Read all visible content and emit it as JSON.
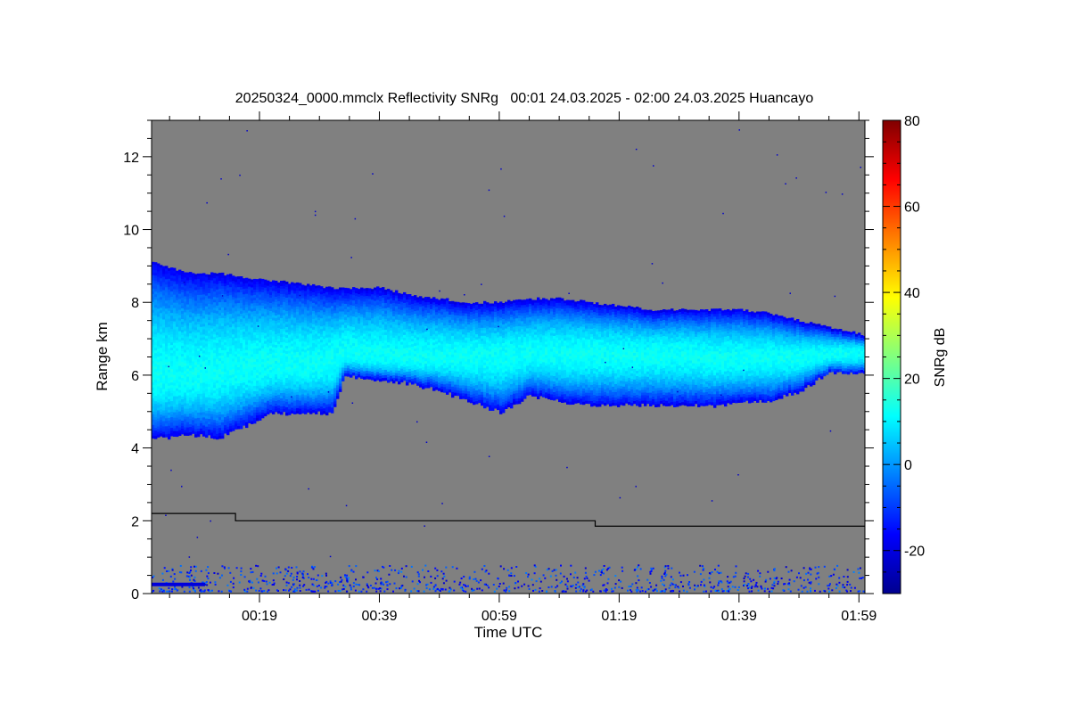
{
  "chart_data": {
    "type": "heatmap",
    "title": "20250324_0000.mmclx Reflectivity SNRg   00:01 24.03.2025 - 02:00 24.03.2025 Huancayo",
    "xlabel": "Time UTC",
    "ylabel": "Range km",
    "colorbar_label": "SNRg dB",
    "xlim_minutes": [
      1,
      120
    ],
    "ylim": [
      0,
      13
    ],
    "x_ticks": [
      {
        "minute": 19,
        "label": "00:19"
      },
      {
        "minute": 39,
        "label": "00:39"
      },
      {
        "minute": 59,
        "label": "00:59"
      },
      {
        "minute": 79,
        "label": "01:19"
      },
      {
        "minute": 99,
        "label": "01:39"
      },
      {
        "minute": 119,
        "label": "01:59"
      }
    ],
    "y_ticks": [
      0,
      2,
      4,
      6,
      8,
      10,
      12
    ],
    "colorbar_range": [
      -30,
      80
    ],
    "colorbar_ticks": [
      -20,
      0,
      20,
      40,
      60,
      80
    ],
    "colormap": "jet",
    "background_color": "#808080",
    "cloud_layer": [
      {
        "minute": 1,
        "top": 9.1,
        "base": 4.3,
        "core": 6.0
      },
      {
        "minute": 7,
        "top": 8.8,
        "base": 4.4,
        "core": 6.0
      },
      {
        "minute": 12,
        "top": 8.8,
        "base": 4.3,
        "core": 6.1
      },
      {
        "minute": 16,
        "top": 8.7,
        "base": 4.6,
        "core": 6.2
      },
      {
        "minute": 21,
        "top": 8.6,
        "base": 5.0,
        "core": 6.3
      },
      {
        "minute": 26,
        "top": 8.5,
        "base": 5.0,
        "core": 6.3
      },
      {
        "minute": 31,
        "top": 8.4,
        "base": 5.0,
        "core": 6.4
      },
      {
        "minute": 33,
        "top": 8.4,
        "base": 6.0,
        "core": 6.6
      },
      {
        "minute": 39,
        "top": 8.4,
        "base": 5.9,
        "core": 6.5
      },
      {
        "minute": 44,
        "top": 8.2,
        "base": 5.8,
        "core": 6.5
      },
      {
        "minute": 49,
        "top": 8.1,
        "base": 5.6,
        "core": 6.5
      },
      {
        "minute": 54,
        "top": 8.0,
        "base": 5.3,
        "core": 6.5
      },
      {
        "minute": 59,
        "top": 8.0,
        "base": 5.0,
        "core": 6.5
      },
      {
        "minute": 64,
        "top": 8.1,
        "base": 5.5,
        "core": 6.6
      },
      {
        "minute": 69,
        "top": 8.1,
        "base": 5.3,
        "core": 6.6
      },
      {
        "minute": 74,
        "top": 8.0,
        "base": 5.2,
        "core": 6.6
      },
      {
        "minute": 79,
        "top": 7.9,
        "base": 5.2,
        "core": 6.6
      },
      {
        "minute": 84,
        "top": 7.8,
        "base": 5.2,
        "core": 6.6
      },
      {
        "minute": 89,
        "top": 7.8,
        "base": 5.2,
        "core": 6.6
      },
      {
        "minute": 94,
        "top": 7.8,
        "base": 5.2,
        "core": 6.5
      },
      {
        "minute": 99,
        "top": 7.8,
        "base": 5.3,
        "core": 6.5
      },
      {
        "minute": 104,
        "top": 7.7,
        "base": 5.3,
        "core": 6.5
      },
      {
        "minute": 109,
        "top": 7.5,
        "base": 5.6,
        "core": 6.5
      },
      {
        "minute": 114,
        "top": 7.3,
        "base": 6.1,
        "core": 6.6
      },
      {
        "minute": 120,
        "top": 7.1,
        "base": 6.1,
        "core": 6.6
      }
    ],
    "cloud_peak_snr_db": 12,
    "cloud_edge_snr_db": -18,
    "boundary_line": [
      {
        "minute": 1,
        "range": 2.2
      },
      {
        "minute": 15,
        "range": 2.2
      },
      {
        "minute": 15,
        "range": 2.0
      },
      {
        "minute": 75,
        "range": 2.0
      },
      {
        "minute": 75,
        "range": 1.85
      },
      {
        "minute": 120,
        "range": 1.85
      }
    ],
    "near_surface_clutter_top_km": 0.8
  }
}
